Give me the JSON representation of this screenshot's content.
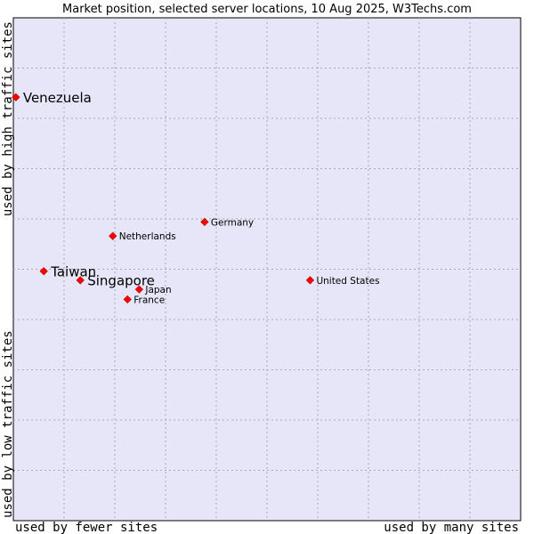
{
  "chart_data": {
    "type": "scatter",
    "title": "Market position, selected server locations, 10 Aug 2025, W3Techs.com",
    "xlabel_left": "used by fewer sites",
    "xlabel_right": "used by many sites",
    "ylabel_bottom": "used by low traffic sites",
    "ylabel_top": "used by high traffic sites",
    "xlim": [
      0,
      100
    ],
    "ylim": [
      0,
      100
    ],
    "grid": true,
    "point_color": "#ff0000",
    "plot_background": "#e6e6f8",
    "points": [
      {
        "name": "Venezuela",
        "x": 0.5,
        "y": 84.2,
        "emphasis": true
      },
      {
        "name": "Germany",
        "x": 37.7,
        "y": 59.4,
        "emphasis": false
      },
      {
        "name": "Netherlands",
        "x": 19.6,
        "y": 56.6,
        "emphasis": false
      },
      {
        "name": "Taiwan",
        "x": 6.0,
        "y": 49.6,
        "emphasis": true
      },
      {
        "name": "Singapore",
        "x": 13.2,
        "y": 47.8,
        "emphasis": true
      },
      {
        "name": "United States",
        "x": 58.5,
        "y": 47.8,
        "emphasis": false
      },
      {
        "name": "Japan",
        "x": 24.8,
        "y": 46.0,
        "emphasis": false
      },
      {
        "name": "France",
        "x": 22.5,
        "y": 44.0,
        "emphasis": false
      }
    ]
  }
}
